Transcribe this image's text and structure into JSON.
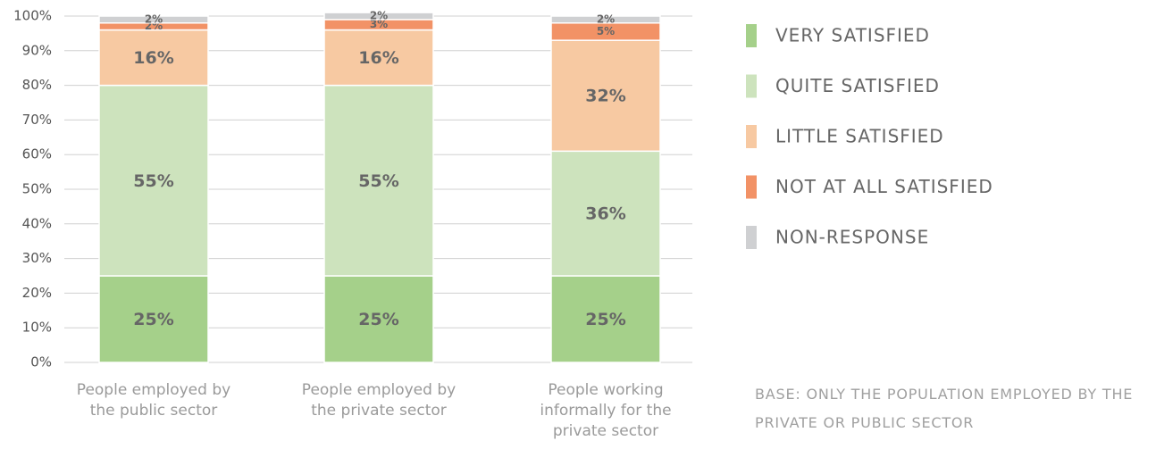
{
  "chart_data": {
    "type": "stacked_bar",
    "categories": [
      "People employed by the public sector",
      "People employed by the private sector",
      "People working informally for the private sector"
    ],
    "series": [
      {
        "name": "VERY SATISFIED",
        "color": "#a5d08a",
        "values": [
          25,
          25,
          25
        ],
        "value_labels": [
          "25%",
          "25%",
          "25%"
        ]
      },
      {
        "name": "QUITE SATISFIED",
        "color": "#cde3bd",
        "values": [
          55,
          55,
          36
        ],
        "value_labels": [
          "55%",
          "55%",
          "36%"
        ]
      },
      {
        "name": "LITTLE SATISFIED",
        "color": "#f7c9a2",
        "values": [
          16,
          16,
          32
        ],
        "value_labels": [
          "16%",
          "16%",
          "32%"
        ]
      },
      {
        "name": "NOT AT ALL SATISFIED",
        "color": "#f29266",
        "values": [
          2,
          3,
          5
        ],
        "value_labels": [
          "2%",
          "3%",
          "5%"
        ]
      },
      {
        "name": "NON-RESPONSE",
        "color": "#cfd0d2",
        "values": [
          2,
          2,
          2
        ],
        "value_labels": [
          "2%",
          "2%",
          "2%"
        ]
      }
    ],
    "ylim": [
      0,
      100
    ],
    "yticks": [
      {
        "value": 0,
        "label": "0%"
      },
      {
        "value": 10,
        "label": "10%"
      },
      {
        "value": 20,
        "label": "20%"
      },
      {
        "value": 30,
        "label": "30%"
      },
      {
        "value": 40,
        "label": "40%"
      },
      {
        "value": 50,
        "label": "50%"
      },
      {
        "value": 60,
        "label": "60%"
      },
      {
        "value": 70,
        "label": "70%"
      },
      {
        "value": 80,
        "label": "80%"
      },
      {
        "value": 90,
        "label": "90%"
      },
      {
        "value": 100,
        "label": "100%"
      }
    ],
    "grid": true,
    "legend": "right",
    "note": "BASE: ONLY THE POPULATION EMPLOYED BY THE PRIVATE OR PUBLIC SECTOR"
  }
}
